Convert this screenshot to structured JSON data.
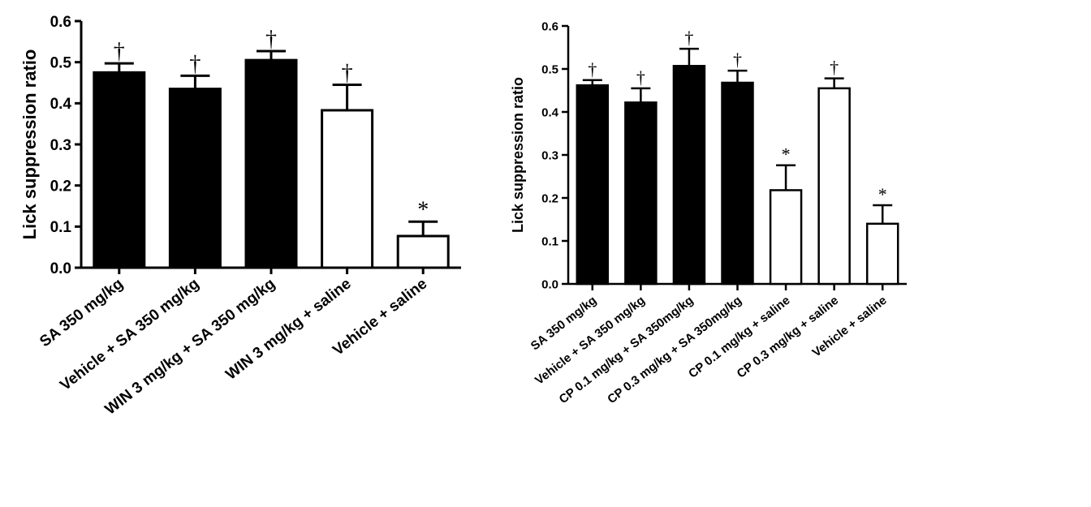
{
  "chart_data": [
    {
      "type": "bar",
      "title": "",
      "xlabel": "",
      "ylabel": "Lick suppression ratio",
      "ylim": [
        0,
        0.6
      ],
      "yticks": [
        "0.0",
        "0.1",
        "0.2",
        "0.3",
        "0.4",
        "0.5",
        "0.6"
      ],
      "categories": [
        "SA 350 mg/kg",
        "Vehicle + SA 350 mg/kg",
        "WIN 3 mg/kg + SA 350 mg/kg",
        "WIN 3 mg/kg + saline",
        "Vehicle + saline"
      ],
      "values": [
        0.475,
        0.435,
        0.505,
        0.383,
        0.077
      ],
      "errors": [
        0.022,
        0.032,
        0.022,
        0.062,
        0.035
      ],
      "fills": [
        "#000000",
        "#000000",
        "#000000",
        "#ffffff",
        "#ffffff"
      ],
      "markers": [
        "†",
        "†",
        "†",
        "†",
        "*"
      ],
      "grid": false,
      "legend": "none"
    },
    {
      "type": "bar",
      "title": "",
      "xlabel": "",
      "ylabel": "Lick suppression ratio",
      "ylim": [
        0,
        0.6
      ],
      "yticks": [
        "0.0",
        "0.1",
        "0.2",
        "0.3",
        "0.4",
        "0.5",
        "0.6"
      ],
      "categories": [
        "SA 350 mg/kg",
        "Vehicle + SA 350 mg/kg",
        "CP 0.1 mg/kg + SA 350mg/kg",
        "CP 0.3 mg/kg + SA 350mg/kg",
        "CP 0.1 mg/kg + saline",
        "CP 0.3 mg/kg + saline",
        "Vehicle + saline"
      ],
      "values": [
        0.462,
        0.422,
        0.507,
        0.468,
        0.218,
        0.455,
        0.14
      ],
      "errors": [
        0.012,
        0.033,
        0.04,
        0.028,
        0.058,
        0.023,
        0.043
      ],
      "fills": [
        "#000000",
        "#000000",
        "#000000",
        "#000000",
        "#ffffff",
        "#ffffff",
        "#ffffff"
      ],
      "markers": [
        "†",
        "†",
        "†",
        "†",
        "*",
        "†",
        "*"
      ],
      "grid": false,
      "legend": "none"
    }
  ]
}
